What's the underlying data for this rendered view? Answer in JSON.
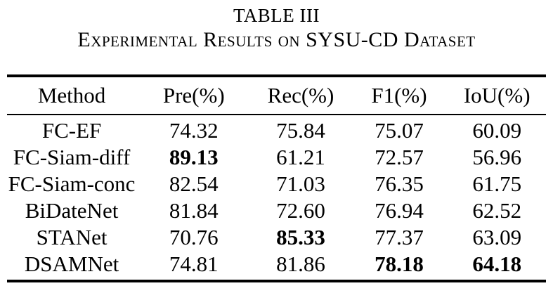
{
  "caption": {
    "title": "TABLE III",
    "subtitle": "Experimental Results on SYSU-CD Dataset"
  },
  "table": {
    "columns": [
      "Method",
      "Pre(%)",
      "Rec(%)",
      "F1(%)",
      "IoU(%)"
    ],
    "rows": [
      {
        "method": "FC-EF",
        "cells": [
          {
            "text": "74.32",
            "bold": false
          },
          {
            "text": "75.84",
            "bold": false
          },
          {
            "text": "75.07",
            "bold": false
          },
          {
            "text": "60.09",
            "bold": false
          }
        ]
      },
      {
        "method": "FC-Siam-diff",
        "cells": [
          {
            "text": "89.13",
            "bold": true
          },
          {
            "text": "61.21",
            "bold": false
          },
          {
            "text": "72.57",
            "bold": false
          },
          {
            "text": "56.96",
            "bold": false
          }
        ]
      },
      {
        "method": "FC-Siam-conc",
        "cells": [
          {
            "text": "82.54",
            "bold": false
          },
          {
            "text": "71.03",
            "bold": false
          },
          {
            "text": "76.35",
            "bold": false
          },
          {
            "text": "61.75",
            "bold": false
          }
        ]
      },
      {
        "method": "BiDateNet",
        "cells": [
          {
            "text": "81.84",
            "bold": false
          },
          {
            "text": "72.60",
            "bold": false
          },
          {
            "text": "76.94",
            "bold": false
          },
          {
            "text": "62.52",
            "bold": false
          }
        ]
      },
      {
        "method": "STANet",
        "cells": [
          {
            "text": "70.76",
            "bold": false
          },
          {
            "text": "85.33",
            "bold": true
          },
          {
            "text": "77.37",
            "bold": false
          },
          {
            "text": "63.09",
            "bold": false
          }
        ]
      },
      {
        "method": "DSAMNet",
        "cells": [
          {
            "text": "74.81",
            "bold": false
          },
          {
            "text": "81.86",
            "bold": false
          },
          {
            "text": "78.18",
            "bold": true
          },
          {
            "text": "64.18",
            "bold": true
          }
        ]
      }
    ]
  }
}
